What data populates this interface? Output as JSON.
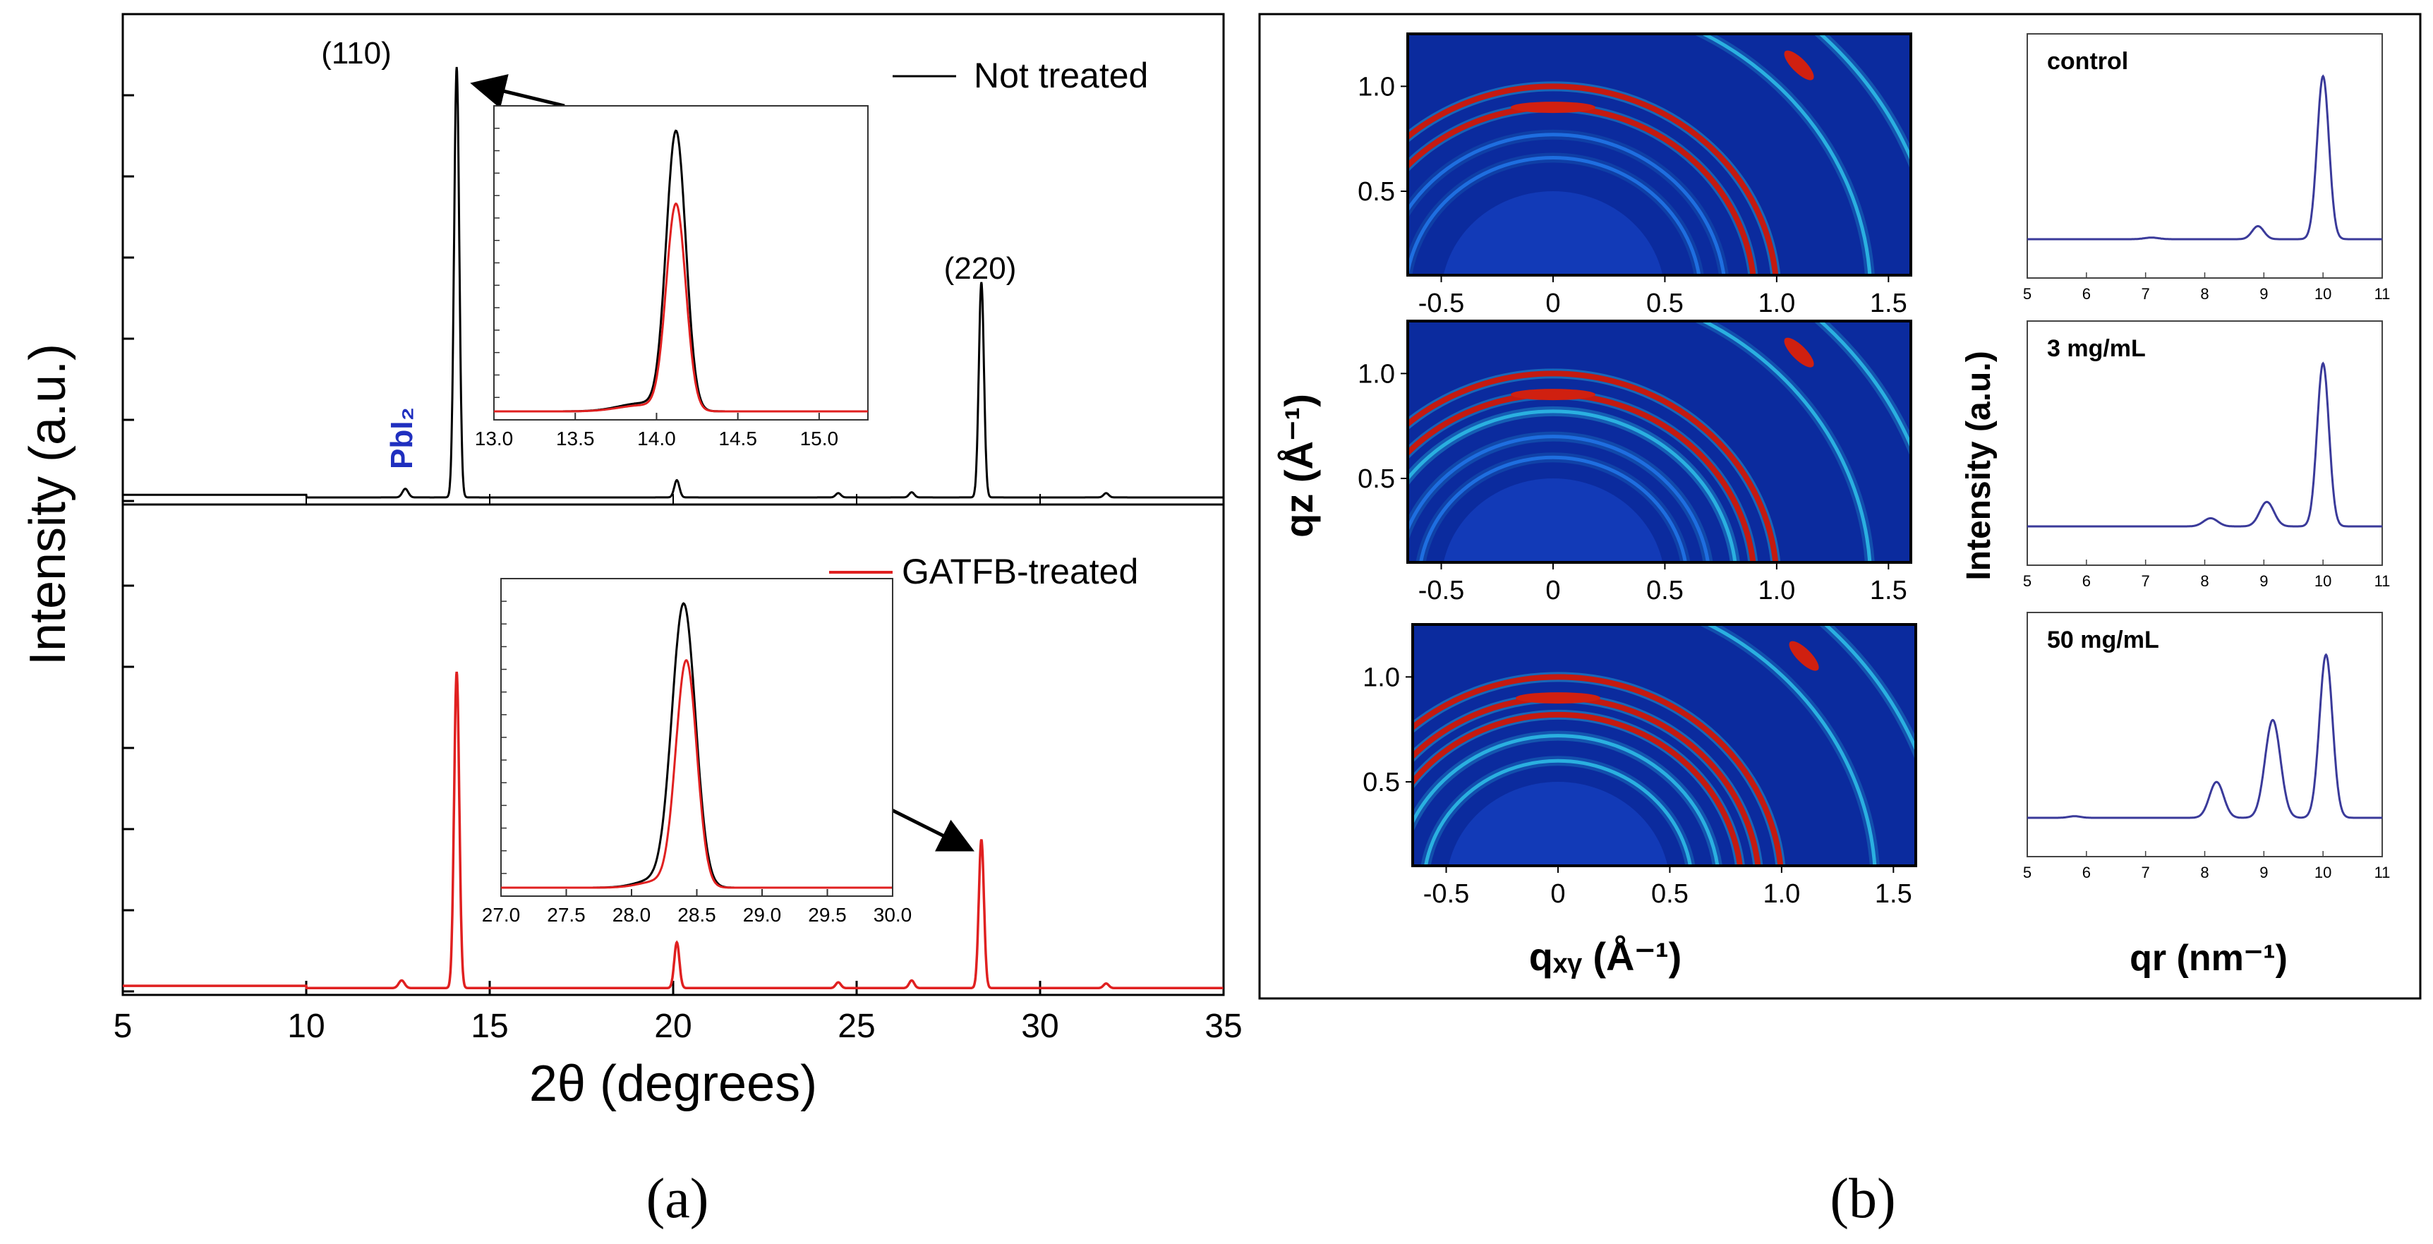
{
  "colors": {
    "not_treated": "#000000",
    "gatfb": "#e02020",
    "pbi2_label": "#1f2fbf",
    "profile_line": "#3a3a9a",
    "gixd_background": "#0a2a9a"
  },
  "panel_labels": {
    "a": "(a)",
    "b": "(b)"
  },
  "chart_data": [
    {
      "id": "xrd-not-treated",
      "type": "line",
      "xlabel": "2θ (degrees)",
      "ylabel": "Intensity (a.u.)",
      "xlim": [
        5,
        35
      ],
      "x_ticks": [
        "5",
        "10",
        "15",
        "20",
        "25",
        "30",
        "35"
      ],
      "legend": "Not treated",
      "legend_position": "top-right",
      "annotations": [
        "(110)",
        "(220)",
        "PbI₂"
      ],
      "peaks": [
        {
          "x": 12.7,
          "h": 0.02,
          "w": 0.08
        },
        {
          "x": 14.1,
          "h": 1.0,
          "w": 0.07
        },
        {
          "x": 20.1,
          "h": 0.04,
          "w": 0.07
        },
        {
          "x": 24.5,
          "h": 0.01,
          "w": 0.07
        },
        {
          "x": 26.5,
          "h": 0.012,
          "w": 0.07
        },
        {
          "x": 28.4,
          "h": 0.5,
          "w": 0.07
        },
        {
          "x": 31.8,
          "h": 0.01,
          "w": 0.07
        }
      ],
      "baseline": 0.005
    },
    {
      "id": "xrd-gatfb-treated",
      "type": "line",
      "xlim": [
        5,
        35
      ],
      "legend": "GATFB-treated",
      "legend_position": "top-right",
      "peaks": [
        {
          "x": 12.6,
          "h": 0.02,
          "w": 0.08
        },
        {
          "x": 14.1,
          "h": 0.83,
          "w": 0.07
        },
        {
          "x": 20.1,
          "h": 0.12,
          "w": 0.07
        },
        {
          "x": 24.5,
          "h": 0.015,
          "w": 0.07
        },
        {
          "x": 26.5,
          "h": 0.02,
          "w": 0.07
        },
        {
          "x": 28.4,
          "h": 0.39,
          "w": 0.07
        },
        {
          "x": 31.8,
          "h": 0.012,
          "w": 0.07
        }
      ],
      "baseline": 0.005
    },
    {
      "id": "inset-110",
      "type": "line",
      "xlim": [
        13.0,
        15.3
      ],
      "x_ticks": [
        "13.0",
        "13.5",
        "14.0",
        "14.5",
        "15.0"
      ],
      "series": [
        {
          "name": "Not treated",
          "peak_x": 14.12,
          "height": 1.0,
          "width": 0.06
        },
        {
          "name": "GATFB-treated",
          "peak_x": 14.12,
          "height": 0.74,
          "width": 0.06
        }
      ]
    },
    {
      "id": "inset-220",
      "type": "line",
      "xlim": [
        27.0,
        30.0
      ],
      "x_ticks": [
        "27.0",
        "27.5",
        "28.0",
        "28.5",
        "29.0",
        "29.5",
        "30.0"
      ],
      "series": [
        {
          "name": "Not treated",
          "peak_x": 28.4,
          "height": 1.0,
          "width": 0.09
        },
        {
          "name": "GATFB-treated",
          "peak_x": 28.42,
          "height": 0.8,
          "width": 0.08
        }
      ]
    },
    {
      "id": "gixd-maps",
      "type": "heatmap",
      "xlabel": "qₓᵧ (Å⁻¹)",
      "ylabel": "qz (Å⁻¹)",
      "xlim": [
        -0.65,
        1.6
      ],
      "ylim": [
        0.1,
        1.25
      ],
      "x_ticks": [
        "-0.5",
        "0",
        "0.5",
        "1.0",
        "1.5"
      ],
      "y_ticks": [
        "0.5",
        "1.0"
      ],
      "maps": [
        {
          "name": "control",
          "rings": [
            {
              "q": 0.66,
              "s": 0.35
            },
            {
              "q": 0.77,
              "s": 0.35
            },
            {
              "q": 0.9,
              "s": 0.9
            },
            {
              "q": 1.0,
              "s": 1.0
            },
            {
              "q": 1.42,
              "s": 0.6
            },
            {
              "q": 1.73,
              "s": 0.7
            }
          ]
        },
        {
          "name": "3 mg/mL",
          "rings": [
            {
              "q": 0.6,
              "s": 0.4
            },
            {
              "q": 0.7,
              "s": 0.5
            },
            {
              "q": 0.82,
              "s": 0.85
            },
            {
              "q": 0.9,
              "s": 0.9
            },
            {
              "q": 1.0,
              "s": 1.0
            },
            {
              "q": 1.42,
              "s": 0.6
            },
            {
              "q": 1.73,
              "s": 0.7
            }
          ]
        },
        {
          "name": "50 mg/mL",
          "rings": [
            {
              "q": 0.6,
              "s": 0.6
            },
            {
              "q": 0.72,
              "s": 0.7
            },
            {
              "q": 0.82,
              "s": 1.0
            },
            {
              "q": 0.9,
              "s": 1.0
            },
            {
              "q": 1.0,
              "s": 1.0
            },
            {
              "q": 1.42,
              "s": 0.6
            },
            {
              "q": 1.73,
              "s": 0.7
            }
          ]
        }
      ]
    },
    {
      "id": "radial-profiles",
      "type": "line",
      "xlabel": "qr (nm⁻¹)",
      "ylabel": "Intensity (a.u.)",
      "xlim": [
        5,
        11
      ],
      "x_ticks": [
        "5",
        "6",
        "7",
        "8",
        "9",
        "10",
        "11"
      ],
      "series": [
        {
          "name": "control",
          "peaks": [
            {
              "x": 7.1,
              "h": 0.01,
              "w": 0.12
            },
            {
              "x": 8.9,
              "h": 0.08,
              "w": 0.1
            },
            {
              "x": 10.0,
              "h": 1.0,
              "w": 0.1
            }
          ]
        },
        {
          "name": "3 mg/mL",
          "peaks": [
            {
              "x": 8.1,
              "h": 0.05,
              "w": 0.12
            },
            {
              "x": 9.05,
              "h": 0.15,
              "w": 0.12
            },
            {
              "x": 10.0,
              "h": 1.0,
              "w": 0.1
            }
          ]
        },
        {
          "name": "50 mg/mL",
          "peaks": [
            {
              "x": 5.8,
              "h": 0.01,
              "w": 0.1
            },
            {
              "x": 8.2,
              "h": 0.22,
              "w": 0.12
            },
            {
              "x": 9.15,
              "h": 0.6,
              "w": 0.13
            },
            {
              "x": 10.05,
              "h": 1.0,
              "w": 0.11
            }
          ]
        }
      ]
    }
  ]
}
